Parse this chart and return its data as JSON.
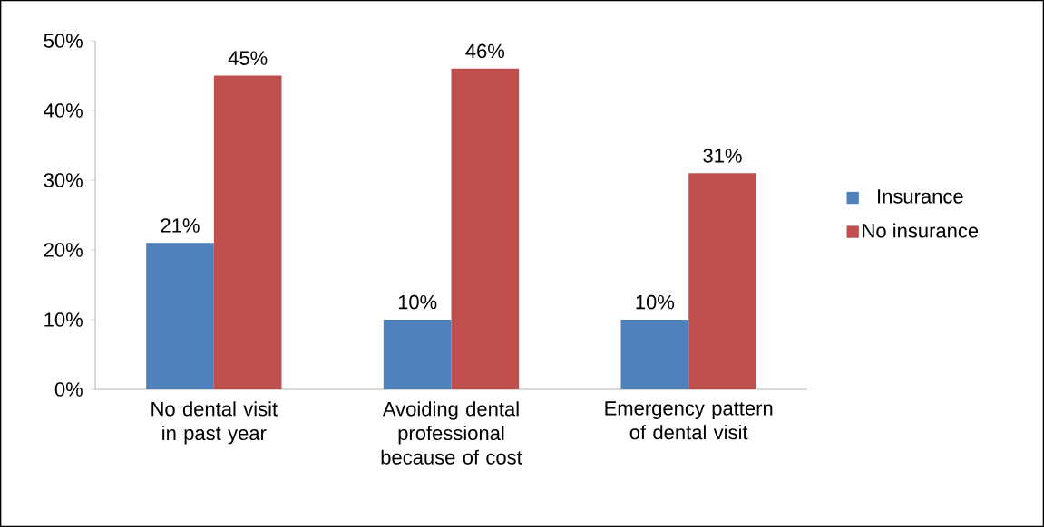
{
  "chart_data": {
    "type": "bar",
    "categories": [
      "No dental visit in past year",
      "Avoiding dental professional because of cost",
      "Emergency pattern of dental visit"
    ],
    "series": [
      {
        "name": "Insurance",
        "color": "#4f81bd",
        "values": [
          21,
          10,
          10
        ],
        "value_labels": [
          "21%",
          "10%",
          "10%"
        ]
      },
      {
        "name": "No insurance",
        "color": "#c0504d",
        "values": [
          45,
          46,
          31
        ],
        "value_labels": [
          "45%",
          "46%",
          "31%"
        ]
      }
    ],
    "ylim": [
      0,
      50
    ],
    "yticks": [
      {
        "value": 0,
        "label": "0%"
      },
      {
        "value": 10,
        "label": "10%"
      },
      {
        "value": 20,
        "label": "20%"
      },
      {
        "value": 30,
        "label": "30%"
      },
      {
        "value": 40,
        "label": "40%"
      },
      {
        "value": 50,
        "label": "50%"
      }
    ],
    "legend": "right"
  }
}
